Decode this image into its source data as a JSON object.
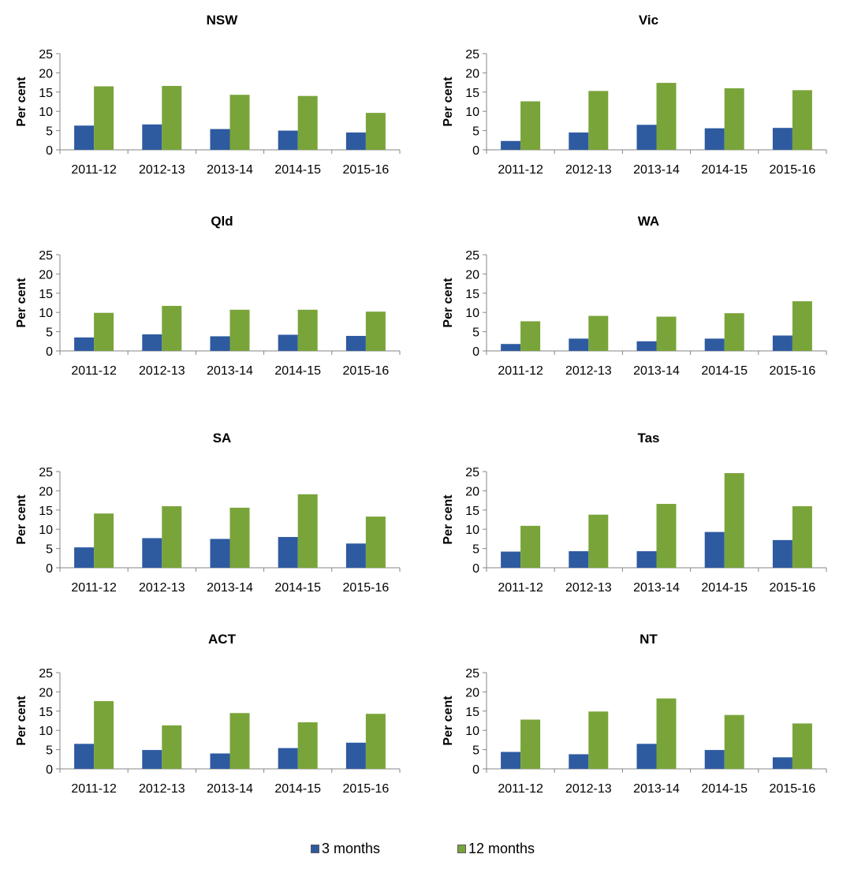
{
  "chart_data": [
    {
      "type": "bar",
      "title": "NSW",
      "ylabel": "Per cent",
      "xlabel": "",
      "categories": [
        "2011-12",
        "2012-13",
        "2013-14",
        "2014-15",
        "2015-16"
      ],
      "ylim": [
        0,
        25
      ],
      "yticks": [
        0,
        5,
        10,
        15,
        20,
        25
      ],
      "series": [
        {
          "name": "3 months",
          "values": [
            6.3,
            6.6,
            5.4,
            5.0,
            4.5
          ]
        },
        {
          "name": "12 months",
          "values": [
            16.5,
            16.6,
            14.3,
            14.0,
            9.6
          ]
        }
      ]
    },
    {
      "type": "bar",
      "title": "Vic",
      "ylabel": "Per cent",
      "xlabel": "",
      "categories": [
        "2011-12",
        "2012-13",
        "2013-14",
        "2014-15",
        "2015-16"
      ],
      "ylim": [
        0,
        25
      ],
      "yticks": [
        0,
        5,
        10,
        15,
        20,
        25
      ],
      "series": [
        {
          "name": "3 months",
          "values": [
            2.3,
            4.5,
            6.5,
            5.6,
            5.7
          ]
        },
        {
          "name": "12 months",
          "values": [
            12.6,
            15.3,
            17.4,
            16.0,
            15.5
          ]
        }
      ]
    },
    {
      "type": "bar",
      "title": "Qld",
      "ylabel": "Per cent",
      "xlabel": "",
      "categories": [
        "2011-12",
        "2012-13",
        "2013-14",
        "2014-15",
        "2015-16"
      ],
      "ylim": [
        0,
        25
      ],
      "yticks": [
        0,
        5,
        10,
        15,
        20,
        25
      ],
      "series": [
        {
          "name": "3 months",
          "values": [
            3.5,
            4.3,
            3.8,
            4.2,
            3.9
          ]
        },
        {
          "name": "12 months",
          "values": [
            9.9,
            11.7,
            10.7,
            10.7,
            10.2
          ]
        }
      ]
    },
    {
      "type": "bar",
      "title": "WA",
      "ylabel": "Per cent",
      "xlabel": "",
      "categories": [
        "2011-12",
        "2012-13",
        "2013-14",
        "2014-15",
        "2015-16"
      ],
      "ylim": [
        0,
        25
      ],
      "yticks": [
        0,
        5,
        10,
        15,
        20,
        25
      ],
      "series": [
        {
          "name": "3 months",
          "values": [
            1.8,
            3.2,
            2.5,
            3.2,
            4.0
          ]
        },
        {
          "name": "12 months",
          "values": [
            7.7,
            9.1,
            8.9,
            9.8,
            12.9
          ]
        }
      ]
    },
    {
      "type": "bar",
      "title": "SA",
      "ylabel": "Per cent",
      "xlabel": "",
      "categories": [
        "2011-12",
        "2012-13",
        "2013-14",
        "2014-15",
        "2015-16"
      ],
      "ylim": [
        0,
        25
      ],
      "yticks": [
        0,
        5,
        10,
        15,
        20,
        25
      ],
      "series": [
        {
          "name": "3 months",
          "values": [
            5.3,
            7.7,
            7.5,
            8.0,
            6.3
          ]
        },
        {
          "name": "12 months",
          "values": [
            14.1,
            16.0,
            15.6,
            19.1,
            13.3
          ]
        }
      ]
    },
    {
      "type": "bar",
      "title": "Tas",
      "ylabel": "Per cent",
      "xlabel": "",
      "categories": [
        "2011-12",
        "2012-13",
        "2013-14",
        "2014-15",
        "2015-16"
      ],
      "ylim": [
        0,
        25
      ],
      "yticks": [
        0,
        5,
        10,
        15,
        20,
        25
      ],
      "series": [
        {
          "name": "3 months",
          "values": [
            4.2,
            4.3,
            4.3,
            9.3,
            7.2
          ]
        },
        {
          "name": "12 months",
          "values": [
            10.9,
            13.8,
            16.6,
            24.6,
            16.0
          ]
        }
      ]
    },
    {
      "type": "bar",
      "title": "ACT",
      "ylabel": "Per cent",
      "xlabel": "",
      "categories": [
        "2011-12",
        "2012-13",
        "2013-14",
        "2014-15",
        "2015-16"
      ],
      "ylim": [
        0,
        25
      ],
      "yticks": [
        0,
        5,
        10,
        15,
        20,
        25
      ],
      "series": [
        {
          "name": "3 months",
          "values": [
            6.5,
            4.9,
            4.0,
            5.4,
            6.8
          ]
        },
        {
          "name": "12 months",
          "values": [
            17.6,
            11.3,
            14.5,
            12.1,
            14.3
          ]
        }
      ]
    },
    {
      "type": "bar",
      "title": "NT",
      "ylabel": "Per cent",
      "xlabel": "",
      "categories": [
        "2011-12",
        "2012-13",
        "2013-14",
        "2014-15",
        "2015-16"
      ],
      "ylim": [
        0,
        25
      ],
      "yticks": [
        0,
        5,
        10,
        15,
        20,
        25
      ],
      "series": [
        {
          "name": "3 months",
          "values": [
            4.4,
            3.8,
            6.5,
            4.9,
            3.0
          ]
        },
        {
          "name": "12 months",
          "values": [
            12.8,
            14.9,
            18.3,
            14.0,
            11.8
          ]
        }
      ]
    }
  ],
  "legend": {
    "items": [
      {
        "label": "3 months",
        "color": "#2e5aa0"
      },
      {
        "label": "12 months",
        "color": "#79a43a"
      }
    ]
  }
}
